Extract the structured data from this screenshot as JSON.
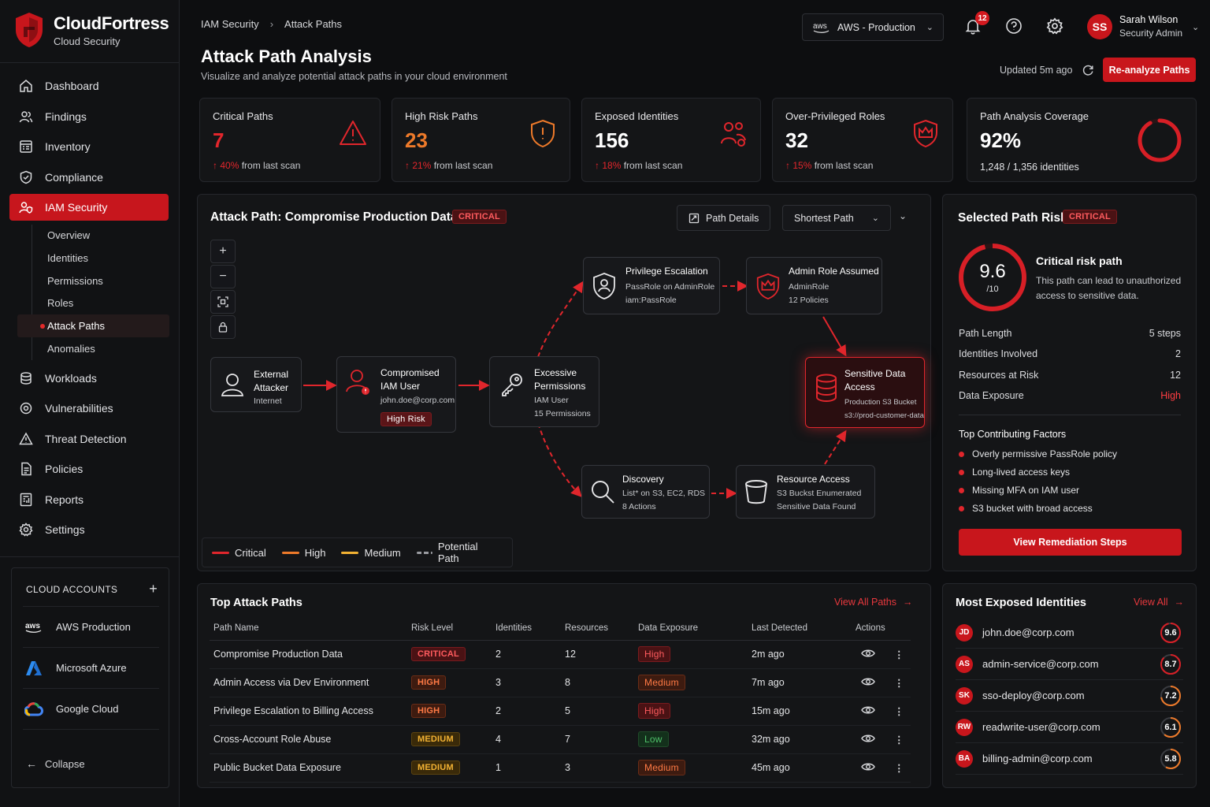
{
  "brand": {
    "name": "CloudFortress",
    "sub": "Cloud Security"
  },
  "nav": {
    "items": [
      {
        "label": "Dashboard",
        "icon": "home-icon"
      },
      {
        "label": "Findings",
        "icon": "users-icon"
      },
      {
        "label": "Inventory",
        "icon": "inventory-icon"
      },
      {
        "label": "Compliance",
        "icon": "shield-check-icon"
      },
      {
        "label": "IAM Security",
        "icon": "user-shield-icon",
        "active": true
      }
    ],
    "sub": [
      "Overview",
      "Identities",
      "Permissions",
      "Roles",
      "Attack Paths",
      "Anomalies"
    ],
    "sub_active": "Attack Paths",
    "rest": [
      {
        "label": "Workloads",
        "icon": "workloads-icon"
      },
      {
        "label": "Vulnerabilities",
        "icon": "bug-icon"
      },
      {
        "label": "Threat Detection",
        "icon": "warning-icon"
      },
      {
        "label": "Policies",
        "icon": "policy-icon"
      },
      {
        "label": "Reports",
        "icon": "reports-icon"
      },
      {
        "label": "Settings",
        "icon": "gear-icon"
      }
    ]
  },
  "cloud_accounts": {
    "title": "CLOUD ACCOUNTS",
    "items": [
      {
        "label": "AWS Production",
        "logo": "aws"
      },
      {
        "label": "Microsoft Azure",
        "logo": "azure"
      },
      {
        "label": "Google Cloud",
        "logo": "gcp"
      }
    ],
    "collapse": "Collapse"
  },
  "header": {
    "breadcrumb": [
      "IAM Security",
      "Attack Paths"
    ],
    "title": "Attack Path Analysis",
    "subtitle": "Visualize and analyze potential attack paths in your cloud environment",
    "account_logo": "aws",
    "account": "AWS - Production",
    "notifications": "12",
    "user": {
      "initials": "SS",
      "name": "Sarah Wilson",
      "role": "Security Admin"
    },
    "updated": "Updated 5m ago",
    "reanalyze": "Re-analyze Paths"
  },
  "kpis": [
    {
      "label": "Critical Paths",
      "value": "7",
      "delta": "40%",
      "suffix": "from last scan",
      "icon": "warning-icon"
    },
    {
      "label": "High Risk Paths",
      "value": "23",
      "delta": "21%",
      "suffix": "from last scan",
      "icon": "shield-alert-icon"
    },
    {
      "label": "Exposed Identities",
      "value": "156",
      "delta": "18%",
      "suffix": "from last scan",
      "icon": "users-alert-icon"
    },
    {
      "label": "Over-Privileged Roles",
      "value": "32",
      "delta": "15%",
      "suffix": "from last scan",
      "icon": "crown-shield-icon"
    },
    {
      "label": "Path Analysis Coverage",
      "value": "92%",
      "sub": "1,248 / 1,356 identities",
      "coverage": 0.92
    }
  ],
  "graph": {
    "title": "Attack Path: Compromise Production Data",
    "badge": "CRITICAL",
    "details_btn": "Path Details",
    "mode": "Shortest Path",
    "nodes": {
      "attacker": {
        "title": [
          "External",
          "Attacker"
        ],
        "sub": [
          "Internet"
        ]
      },
      "iam_user": {
        "title": [
          "Compromised",
          "IAM User"
        ],
        "sub": [
          "john.doe@corp.com"
        ],
        "tag": "High Risk"
      },
      "perms": {
        "title": [
          "Excessive",
          "Permissions"
        ],
        "sub": [
          "IAM User",
          "15 Permissions"
        ]
      },
      "priv": {
        "title": [
          "Privilege Escalation"
        ],
        "sub": [
          "PassRole on AdminRole",
          "iam:PassRole"
        ]
      },
      "admin": {
        "title": [
          "Admin Role Assumed"
        ],
        "sub": [
          "AdminRole",
          "12 Policies"
        ]
      },
      "data": {
        "title": [
          "Sensitive Data",
          "Access"
        ],
        "sub": [
          "Production S3 Bucket",
          "s3://prod-customer-data"
        ]
      },
      "discovery": {
        "title": [
          "Discovery"
        ],
        "sub": [
          "List* on S3, EC2, RDS",
          "8 Actions"
        ]
      },
      "resource": {
        "title": [
          "Resource Access"
        ],
        "sub": [
          "S3 Buckst Enumerated",
          "Sensitive Data Found"
        ]
      }
    },
    "legend": [
      {
        "label": "Critical",
        "color": "#e0262c"
      },
      {
        "label": "High",
        "color": "#ee7a2a"
      },
      {
        "label": "Medium",
        "color": "#f2b233"
      },
      {
        "label": "Potential Path",
        "color": "#9a9ca1"
      }
    ]
  },
  "selected": {
    "title": "Selected Path Risk",
    "badge": "CRITICAL",
    "score": "9.6",
    "score_of": "/10",
    "score_fraction": 0.96,
    "headline": "Critical risk path",
    "desc": [
      "This path can lead to unauthorized",
      "access to sensitive data."
    ],
    "rows": [
      {
        "k": "Path Length",
        "v": "5 steps"
      },
      {
        "k": "Identities Involved",
        "v": "2"
      },
      {
        "k": "Resources at Risk",
        "v": "12"
      },
      {
        "k": "Data Exposure",
        "v": "High"
      }
    ],
    "factors_title": "Top Contributing Factors",
    "factors": [
      "Overly permissive PassRole policy",
      "Long-lived access keys",
      "Missing MFA on IAM user",
      "S3 bucket with broad access"
    ],
    "remediate": "View Remediation Steps"
  },
  "top_paths": {
    "title": "Top Attack Paths",
    "view_all": "View All Paths",
    "columns": [
      "Path Name",
      "Risk Level",
      "Identities",
      "Resources",
      "Data Exposure",
      "Last Detected",
      "Actions"
    ],
    "rows": [
      {
        "name": "Compromise Production Data",
        "risk": "CRITICAL",
        "ids": "2",
        "res": "12",
        "exp": "High",
        "last": "2m ago"
      },
      {
        "name": "Admin Access via Dev Environment",
        "risk": "HIGH",
        "ids": "3",
        "res": "8",
        "exp": "Medium",
        "last": "7m ago"
      },
      {
        "name": "Privilege Escalation to Billing Access",
        "risk": "HIGH",
        "ids": "2",
        "res": "5",
        "exp": "High",
        "last": "15m ago"
      },
      {
        "name": "Cross-Account Role Abuse",
        "risk": "MEDIUM",
        "ids": "4",
        "res": "7",
        "exp": "Low",
        "last": "32m ago"
      },
      {
        "name": "Public Bucket Data Exposure",
        "risk": "MEDIUM",
        "ids": "1",
        "res": "3",
        "exp": "Medium",
        "last": "45m ago"
      }
    ]
  },
  "exposed": {
    "title": "Most Exposed Identities",
    "view_all": "View All",
    "items": [
      {
        "initials": "JD",
        "name": "john.doe@corp.com",
        "score": "9.6",
        "fraction": 0.96
      },
      {
        "initials": "AS",
        "name": "admin-service@corp.com",
        "score": "8.7",
        "fraction": 0.87
      },
      {
        "initials": "SK",
        "name": "sso-deploy@corp.com",
        "score": "7.2",
        "fraction": 0.72
      },
      {
        "initials": "RW",
        "name": "readwrite-user@corp.com",
        "score": "6.1",
        "fraction": 0.61
      },
      {
        "initials": "BA",
        "name": "billing-admin@corp.com",
        "score": "5.8",
        "fraction": 0.58
      }
    ]
  }
}
